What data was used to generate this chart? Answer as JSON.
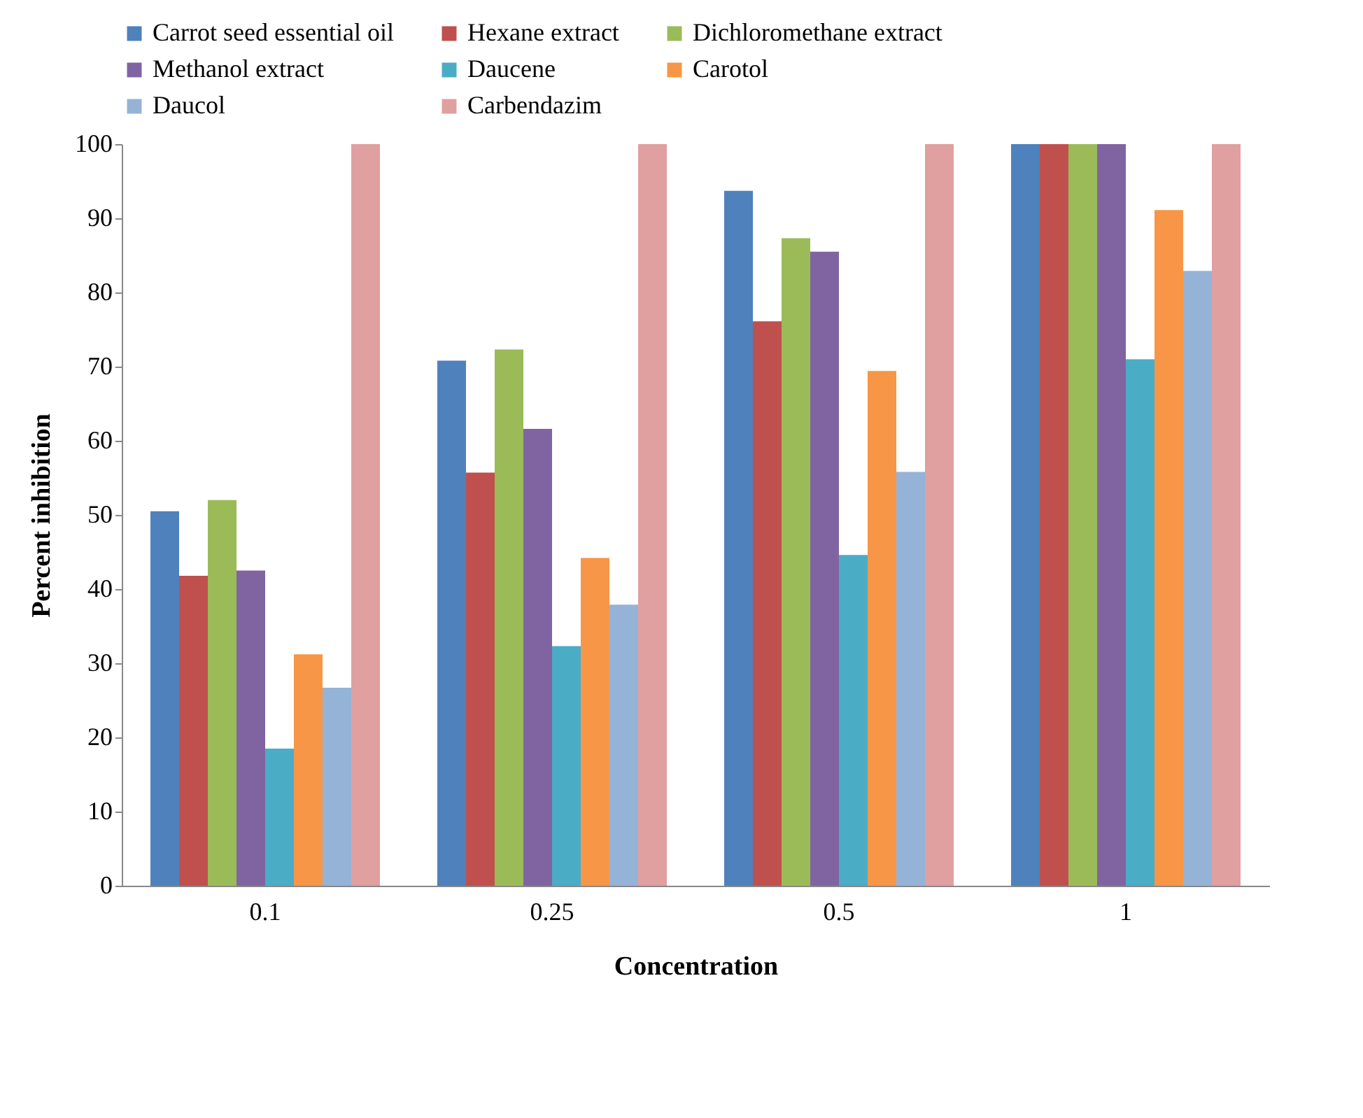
{
  "chart_data": {
    "type": "bar",
    "xlabel": "Concentration",
    "ylabel": "Percent inhibition",
    "categories": [
      "0.1",
      "0.25",
      "0.5",
      "1"
    ],
    "series": [
      {
        "name": "Carrot seed essential oil",
        "color": "#4f81bd",
        "values": [
          50.5,
          70.8,
          93.7,
          100
        ]
      },
      {
        "name": "Hexane extract",
        "color": "#c0504d",
        "values": [
          41.8,
          55.7,
          76.1,
          100
        ]
      },
      {
        "name": "Dichloromethane extract",
        "color": "#9bbb59",
        "values": [
          52,
          72.3,
          87.3,
          100
        ]
      },
      {
        "name": "Methanol extract",
        "color": "#8064a2",
        "values": [
          42.5,
          61.6,
          85.5,
          100
        ]
      },
      {
        "name": "Daucene",
        "color": "#4bacc6",
        "values": [
          18.5,
          32.3,
          44.6,
          71
        ]
      },
      {
        "name": "Carotol",
        "color": "#f79646",
        "values": [
          31.2,
          44.2,
          69.4,
          91.1
        ]
      },
      {
        "name": "Daucol",
        "color": "#95b3d7",
        "values": [
          26.7,
          37.9,
          55.8,
          82.9
        ]
      },
      {
        "name": "Carbendazim",
        "color": "#e0a0a0",
        "values": [
          100,
          100,
          100,
          100
        ]
      }
    ],
    "ylim": [
      0,
      100
    ],
    "yticks": [
      0,
      10,
      20,
      30,
      40,
      50,
      60,
      70,
      80,
      90,
      100
    ],
    "legend": "top"
  }
}
